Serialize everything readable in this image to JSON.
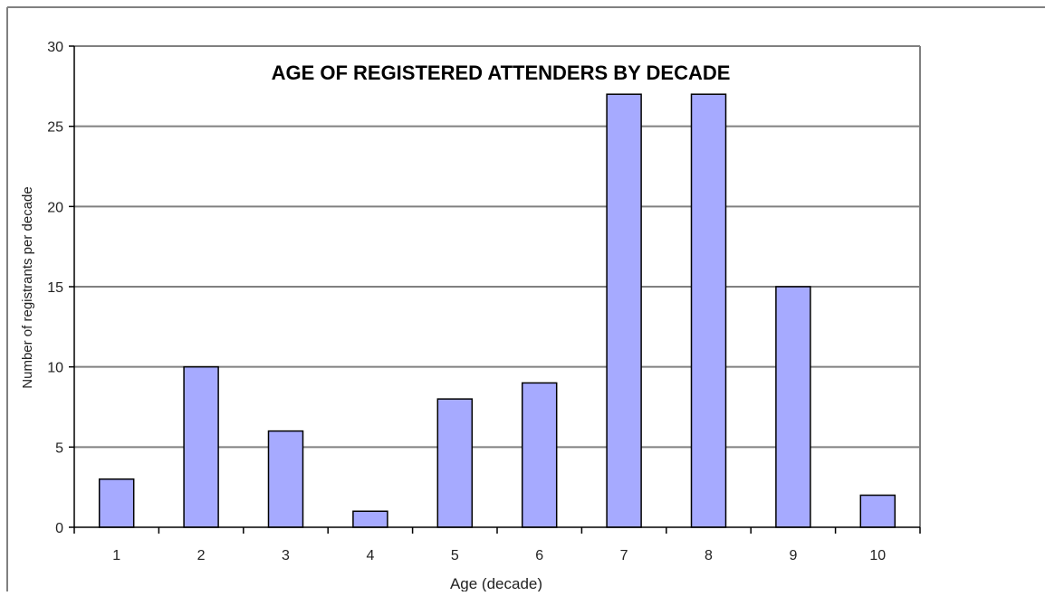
{
  "chart_data": {
    "type": "bar",
    "title": "AGE OF REGISTERED ATTENDERS BY DECADE",
    "xlabel": "Age (decade)",
    "ylabel": "Number of registrants per decade",
    "categories": [
      "1",
      "2",
      "3",
      "4",
      "5",
      "6",
      "7",
      "8",
      "9",
      "10"
    ],
    "values": [
      3,
      10,
      6,
      1,
      8,
      9,
      27,
      27,
      15,
      2
    ],
    "ylim": [
      0,
      30
    ],
    "yticks": [
      0,
      5,
      10,
      15,
      20,
      25,
      30
    ],
    "grid": true,
    "legend": "none",
    "colors": {
      "bar_fill": "#a6aaff",
      "bar_stroke": "#000000",
      "gridline": "#808080",
      "axis": "#000000",
      "frame": "#808080"
    }
  }
}
